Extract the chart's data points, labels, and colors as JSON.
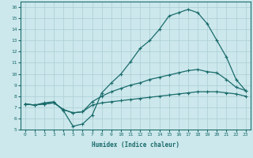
{
  "xlabel": "Humidex (Indice chaleur)",
  "xlim": [
    -0.5,
    23.5
  ],
  "ylim": [
    5,
    16.5
  ],
  "xticks": [
    0,
    1,
    2,
    3,
    4,
    5,
    6,
    7,
    8,
    9,
    10,
    11,
    12,
    13,
    14,
    15,
    16,
    17,
    18,
    19,
    20,
    21,
    22,
    23
  ],
  "yticks": [
    5,
    6,
    7,
    8,
    9,
    10,
    11,
    12,
    13,
    14,
    15,
    16
  ],
  "background_color": "#cce8ec",
  "grid_color": "#aacdd4",
  "line_color": "#1a6b6b",
  "line1_x": [
    0,
    1,
    2,
    3,
    4,
    5,
    6,
    7,
    8,
    9,
    10,
    11,
    12,
    13,
    14,
    15,
    16,
    17,
    18,
    19,
    20,
    21,
    22,
    23
  ],
  "line1_y": [
    7.3,
    7.2,
    7.4,
    7.5,
    6.7,
    5.3,
    5.5,
    6.3,
    8.3,
    9.2,
    10.0,
    11.1,
    12.3,
    13.0,
    14.0,
    15.2,
    15.5,
    15.8,
    15.5,
    14.5,
    13.0,
    11.5,
    9.5,
    8.5
  ],
  "line2_x": [
    0,
    1,
    2,
    3,
    4,
    5,
    6,
    7,
    8,
    9,
    10,
    11,
    12,
    13,
    14,
    15,
    16,
    17,
    18,
    19,
    20,
    21,
    22,
    23
  ],
  "line2_y": [
    7.3,
    7.2,
    7.3,
    7.4,
    6.8,
    6.5,
    6.6,
    7.5,
    8.0,
    8.4,
    8.7,
    9.0,
    9.2,
    9.5,
    9.7,
    9.9,
    10.1,
    10.3,
    10.4,
    10.2,
    10.1,
    9.5,
    8.8,
    8.5
  ],
  "line3_x": [
    0,
    1,
    2,
    3,
    4,
    5,
    6,
    7,
    8,
    9,
    10,
    11,
    12,
    13,
    14,
    15,
    16,
    17,
    18,
    19,
    20,
    21,
    22,
    23
  ],
  "line3_y": [
    7.3,
    7.2,
    7.3,
    7.4,
    6.8,
    6.5,
    6.6,
    7.2,
    7.4,
    7.5,
    7.6,
    7.7,
    7.8,
    7.9,
    8.0,
    8.1,
    8.2,
    8.3,
    8.4,
    8.4,
    8.4,
    8.3,
    8.2,
    8.0
  ]
}
